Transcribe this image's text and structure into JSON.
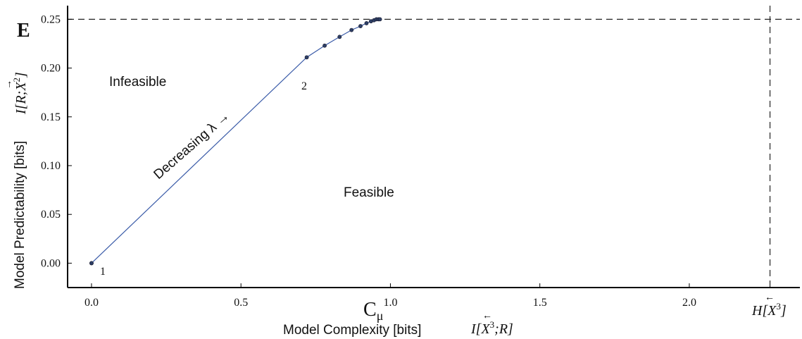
{
  "chart_data": {
    "type": "line",
    "title": "",
    "xlabel": "Model Complexity [bits]",
    "xlabel_math": "I[X³;R]",
    "ylabel": "Model Predictability [bits]",
    "ylabel_math": "I[R;X²]",
    "xlim": [
      -0.08,
      2.37
    ],
    "ylim": [
      -0.025,
      0.264
    ],
    "xticks": [
      0.0,
      0.5,
      1.0,
      1.5,
      2.0
    ],
    "xtick_labels": [
      "0.0",
      "0.5",
      "1.0",
      "1.5",
      "2.0"
    ],
    "yticks": [
      0.0,
      0.05,
      0.1,
      0.15,
      0.2,
      0.25
    ],
    "ytick_labels": [
      "0.00",
      "0.05",
      "0.10",
      "0.15",
      "0.20",
      "0.25"
    ],
    "grid": false,
    "series": [
      {
        "color": "#3a5ba8",
        "x": [
          0.0,
          0.0,
          0.72,
          0.78,
          0.83,
          0.87,
          0.9,
          0.92,
          0.935,
          0.945,
          0.953,
          0.96,
          0.965
        ],
        "y": [
          0.0,
          0.0,
          0.211,
          0.223,
          0.232,
          0.239,
          0.243,
          0.246,
          0.248,
          0.249,
          0.25,
          0.25,
          0.25
        ]
      }
    ],
    "reference_lines": {
      "E": {
        "y": 0.25,
        "label": "E"
      },
      "C_mu": {
        "x": 0.965,
        "label": "Cμ"
      },
      "H": {
        "x": 2.27,
        "label": "H[X³]"
      }
    },
    "annotations": {
      "infeasible": "Infeasible",
      "feasible": "Feasible",
      "point_1": "1",
      "point_2": "2",
      "direction": "Decreasing λ →"
    },
    "colors": {
      "curve": "#3a5ba8",
      "points": "#2d3f66",
      "axes": "#000000"
    }
  }
}
